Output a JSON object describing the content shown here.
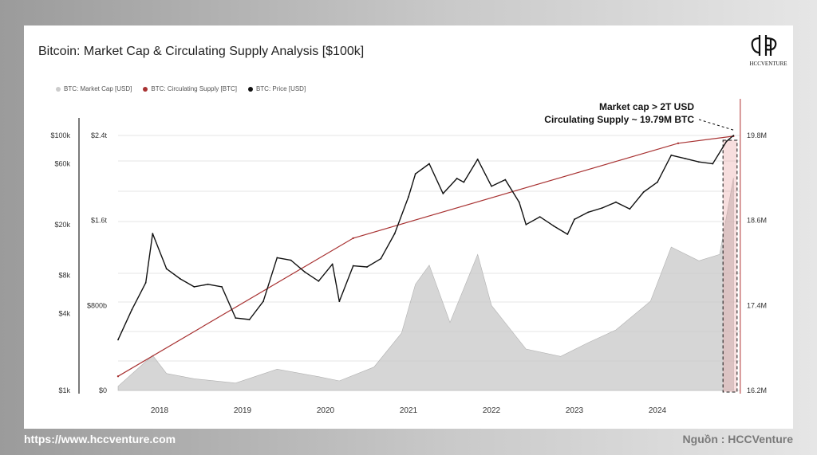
{
  "title": "Bitcoin: Market Cap & Circulating Supply Analysis [$100k]",
  "logo_text": "HCCVENTURE",
  "legend": [
    {
      "label": "BTC: Market Cap [USD]",
      "color": "#cccccc"
    },
    {
      "label": "BTC: Circulating Supply [BTC]",
      "color": "#a83232"
    },
    {
      "label": "BTC: Price [USD]",
      "color": "#111111"
    }
  ],
  "footer": {
    "url": "https://www.hccventure.com",
    "source": "Nguồn : HCCVenture"
  },
  "chart_data": {
    "type": "line",
    "x_ticks": [
      "2018",
      "2019",
      "2020",
      "2021",
      "2022",
      "2023",
      "2024"
    ],
    "y_price_ticks": [
      "$100k",
      "$60k",
      "$20k",
      "$8k",
      "$4k",
      "$1k"
    ],
    "y_marketcap_ticks": [
      "$2.4t",
      "$1.6t",
      "$800b",
      "$0"
    ],
    "y_supply_ticks": [
      "19.8M",
      "18.6M",
      "17.4M",
      "16.2M"
    ],
    "annotation": [
      "Market cap > 2T USD",
      "Circulating Supply ~ 19.79M BTC"
    ],
    "series": [
      {
        "name": "BTC: Price [USD]",
        "x": [
          "2017-07",
          "2017-09",
          "2017-11",
          "2017-12",
          "2018-02",
          "2018-04",
          "2018-06",
          "2018-08",
          "2018-10",
          "2018-12",
          "2019-02",
          "2019-04",
          "2019-06",
          "2019-08",
          "2019-10",
          "2019-12",
          "2020-02",
          "2020-03",
          "2020-05",
          "2020-07",
          "2020-09",
          "2020-11",
          "2021-01",
          "2021-02",
          "2021-04",
          "2021-06",
          "2021-08",
          "2021-09",
          "2021-11",
          "2022-01",
          "2022-03",
          "2022-05",
          "2022-06",
          "2022-08",
          "2022-10",
          "2022-12",
          "2023-01",
          "2023-03",
          "2023-05",
          "2023-07",
          "2023-09",
          "2023-11",
          "2024-01",
          "2024-03",
          "2024-05",
          "2024-07",
          "2024-09",
          "2024-11",
          "2024-12"
        ],
        "values": [
          2500,
          4300,
          7000,
          17000,
          9000,
          7500,
          6500,
          6800,
          6500,
          3700,
          3600,
          5000,
          11000,
          10500,
          8500,
          7200,
          9800,
          5000,
          9500,
          9300,
          10800,
          17000,
          33000,
          50000,
          60000,
          35000,
          46000,
          43000,
          65000,
          40000,
          45000,
          30000,
          20000,
          23000,
          19500,
          16800,
          22000,
          25000,
          27000,
          30000,
          26500,
          36000,
          43000,
          70000,
          66000,
          62000,
          60000,
          90000,
          100000
        ]
      },
      {
        "name": "BTC: Circulating Supply [BTC]",
        "x": [
          "2017-07",
          "2020-05",
          "2024-04",
          "2024-12"
        ],
        "values": [
          16400000,
          18350000,
          19690000,
          19790000
        ]
      },
      {
        "name": "BTC: Market Cap [USD]",
        "x": [
          "2017-07",
          "2017-12",
          "2018-02",
          "2018-06",
          "2018-12",
          "2019-06",
          "2019-12",
          "2020-03",
          "2020-08",
          "2020-12",
          "2021-02",
          "2021-04",
          "2021-07",
          "2021-11",
          "2022-01",
          "2022-06",
          "2022-11",
          "2023-03",
          "2023-07",
          "2023-12",
          "2024-03",
          "2024-07",
          "2024-10",
          "2024-12"
        ],
        "values": [
          40,
          330,
          160,
          110,
          70,
          200,
          130,
          90,
          220,
          540,
          1000,
          1180,
          640,
          1280,
          800,
          390,
          320,
          450,
          570,
          840,
          1350,
          1220,
          1280,
          2000
        ]
      }
    ]
  }
}
